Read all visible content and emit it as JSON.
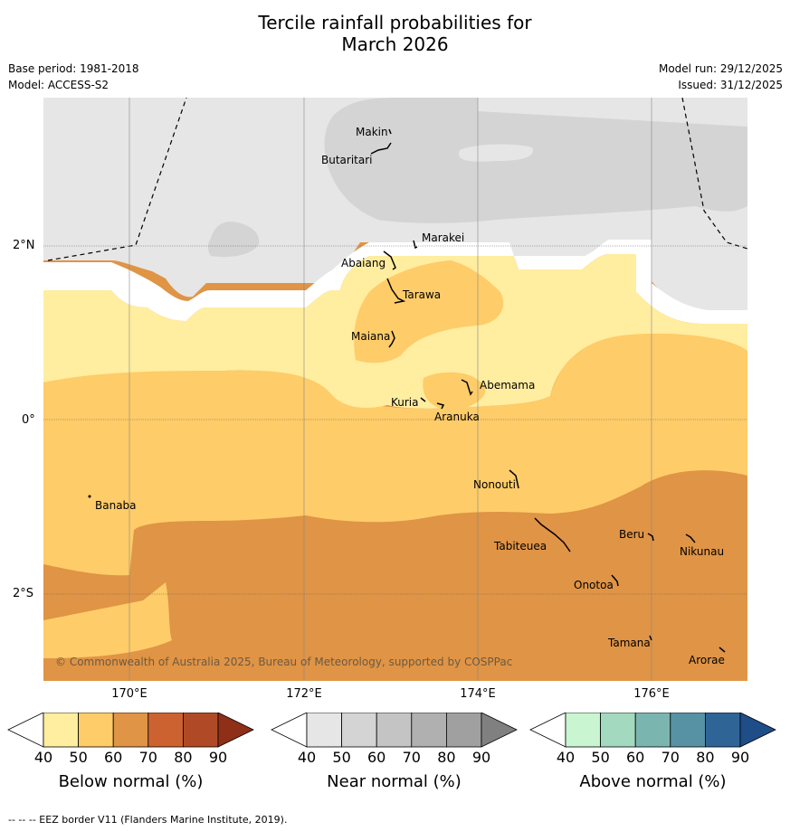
{
  "title_line1": "Tercile rainfall probabilities for",
  "title_line2": "March 2026",
  "base_period": "Base period: 1981-2018",
  "model": "Model: ACCESS-S2",
  "model_run": "Model run: 29/12/2025",
  "issued": "Issued: 31/12/2025",
  "copyright": "© Commonwealth of Australia 2025, Bureau of Meteorology, supported by COSPPac",
  "footnote": "--  --  -- EEZ border V11 (Flanders Marine Institute, 2019).",
  "lat_labels": [
    "2°N",
    "0°",
    "2°S"
  ],
  "lon_labels": [
    "170°E",
    "172°E",
    "174°E",
    "176°E"
  ],
  "places": [
    "Makin",
    "Butaritari",
    "Marakei",
    "Abaiang",
    "Tarawa",
    "Maiana",
    "Abemama",
    "Kuria",
    "Aranuka",
    "Nonouti",
    "Banaba",
    "Beru",
    "Nikunau",
    "Tabiteuea",
    "Onotoa",
    "Tamana",
    "Arorae"
  ],
  "colorbars": [
    {
      "label": "Below normal (%)",
      "ticks": [
        "40",
        "50",
        "60",
        "70",
        "80",
        "90"
      ],
      "colors": [
        "#ffffff",
        "#ffeda0",
        "#fecc68",
        "#e09445",
        "#cd6231",
        "#b04a26",
        "#8f2f18"
      ]
    },
    {
      "label": "Near normal (%)",
      "ticks": [
        "40",
        "50",
        "60",
        "70",
        "80",
        "90"
      ],
      "colors": [
        "#ffffff",
        "#e6e6e6",
        "#d4d4d4",
        "#c4c4c4",
        "#b0b0b0",
        "#a0a0a0",
        "#808080"
      ]
    },
    {
      "label": "Above normal (%)",
      "ticks": [
        "40",
        "50",
        "60",
        "70",
        "80",
        "90"
      ],
      "colors": [
        "#ffffff",
        "#c9f5d0",
        "#a3d9be",
        "#7bb5b0",
        "#5791a4",
        "#2f6497",
        "#1e4d88"
      ]
    }
  ]
}
